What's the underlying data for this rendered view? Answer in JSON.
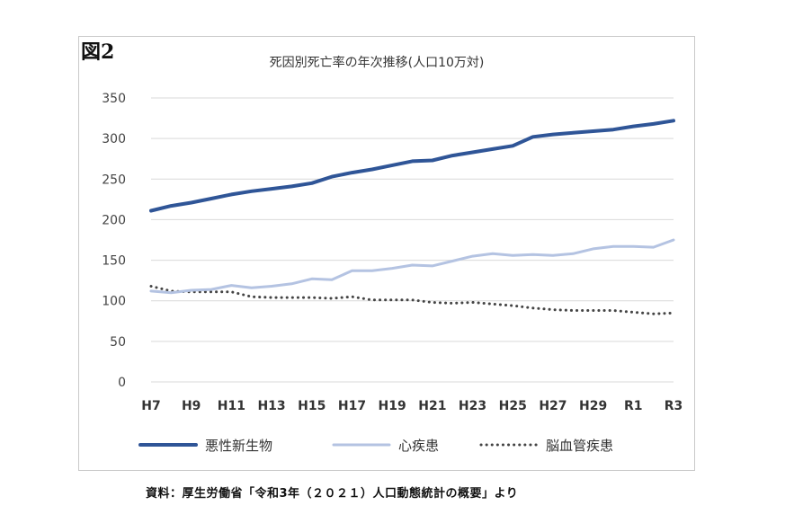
{
  "figure_label": "図2",
  "source_note": "資料：厚生労働省「令和3年（２０２１）人口動態統計の概要」より",
  "chart_data": {
    "type": "line",
    "title": "死因別死亡率の年次推移(人口10万対)",
    "ylim": [
      0,
      350
    ],
    "yticks": [
      0,
      50,
      100,
      150,
      200,
      250,
      300,
      350
    ],
    "grid": true,
    "legend_position": "bottom",
    "x": [
      "H7",
      "H8",
      "H9",
      "H10",
      "H11",
      "H12",
      "H13",
      "H14",
      "H15",
      "H16",
      "H17",
      "H18",
      "H19",
      "H20",
      "H21",
      "H22",
      "H23",
      "H24",
      "H25",
      "H26",
      "H27",
      "H28",
      "H29",
      "H30",
      "R1",
      "R2",
      "R3"
    ],
    "xtick_labels": [
      "H7",
      "H9",
      "H11",
      "H13",
      "H15",
      "H17",
      "H19",
      "H21",
      "H23",
      "H25",
      "H27",
      "H29",
      "R1",
      "R3"
    ],
    "series": [
      {
        "name": "悪性新生物",
        "color": "#2f5597",
        "style": "solid-thick",
        "values": [
          211,
          217,
          221,
          226,
          231,
          235,
          238,
          241,
          245,
          253,
          258,
          262,
          267,
          272,
          273,
          279,
          283,
          287,
          291,
          302,
          305,
          307,
          309,
          311,
          315,
          318,
          322
        ]
      },
      {
        "name": "心疾患",
        "color": "#b4c3e2",
        "style": "solid",
        "values": [
          112,
          110,
          113,
          114,
          119,
          116,
          118,
          121,
          127,
          126,
          137,
          137,
          140,
          144,
          143,
          149,
          155,
          158,
          156,
          157,
          156,
          158,
          164,
          167,
          167,
          166,
          175
        ]
      },
      {
        "name": "脳血管疾患",
        "color": "#444444",
        "style": "dotted",
        "values": [
          118,
          112,
          111,
          111,
          111,
          105,
          104,
          104,
          104,
          103,
          105,
          101,
          101,
          101,
          98,
          97,
          98,
          96,
          94,
          91,
          89,
          88,
          88,
          88,
          86,
          84,
          85
        ]
      }
    ]
  }
}
